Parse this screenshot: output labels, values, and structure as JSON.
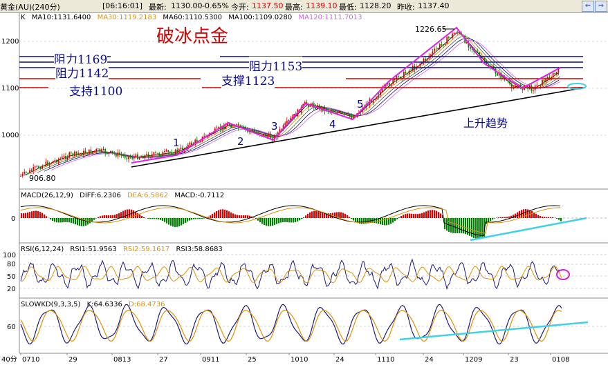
{
  "header": {
    "symbol": "黄金(AU)(240分)",
    "time": "[06:16:01]",
    "latest_label": "最新:",
    "latest": "1130.00",
    "change": "-0.65%",
    "open_label": "今开:",
    "open": "1137.50",
    "high_label": "最高:",
    "high": "1139.10",
    "low_label": "最低:",
    "low": "1128.20",
    "prev_label": "昨收:",
    "prev": "1137.40"
  },
  "ma_legend": {
    "k": "K",
    "ma10": "MA10:1131.6400",
    "ma30": "MA30:1119.2183",
    "ma60": "MA60:1110.5300",
    "ma100": "MA100:1109.0280",
    "ma120": "MA120:1111.7013"
  },
  "macd_legend": {
    "name": "MACD(26,12,9)",
    "diff": "DIFF:6.2306",
    "dea": "DEA:6.5862",
    "macd": "MACD:-0.7112"
  },
  "rsi_legend": {
    "name": "RSI(6,12,24)",
    "rsi1": "RSI1:51.9563",
    "rsi2": "RSI2:59.1617",
    "rsi3": "RSI3:58.8683"
  },
  "kd_legend": {
    "name": "SLOWKD(9,3,3,5)",
    "k": "K:64.6336",
    "d": "D:68.4736"
  },
  "annotations": {
    "title": "破冰点金",
    "r1169": "阻力1169",
    "r1153": "阻力1153",
    "r1142": "阻力1142",
    "s1123": "支撑1123",
    "s1100": "支持1100",
    "trend": "上升趋势",
    "high": "1226.65",
    "low": "906.80",
    "waves": [
      "1",
      "2",
      "3",
      "4",
      "5"
    ]
  },
  "price_axis": [
    "1200",
    "1100",
    "1000"
  ],
  "macd_axis": [
    "0"
  ],
  "rsi_axis": [
    "100",
    "80",
    "50",
    "20"
  ],
  "kd_axis": [
    "60"
  ],
  "date_axis": [
    "0710",
    "29",
    "0813",
    "27",
    "0911",
    "25",
    "1010",
    "24",
    "1110",
    "24",
    "1209",
    "23",
    "0108"
  ],
  "footer_unit": "40分",
  "colors": {
    "resistance": "#0a0a8c",
    "support": "#d40000",
    "wave": "#e020e0",
    "trend": "#40d0e8",
    "up": "#e00000",
    "down": "#008000"
  }
}
